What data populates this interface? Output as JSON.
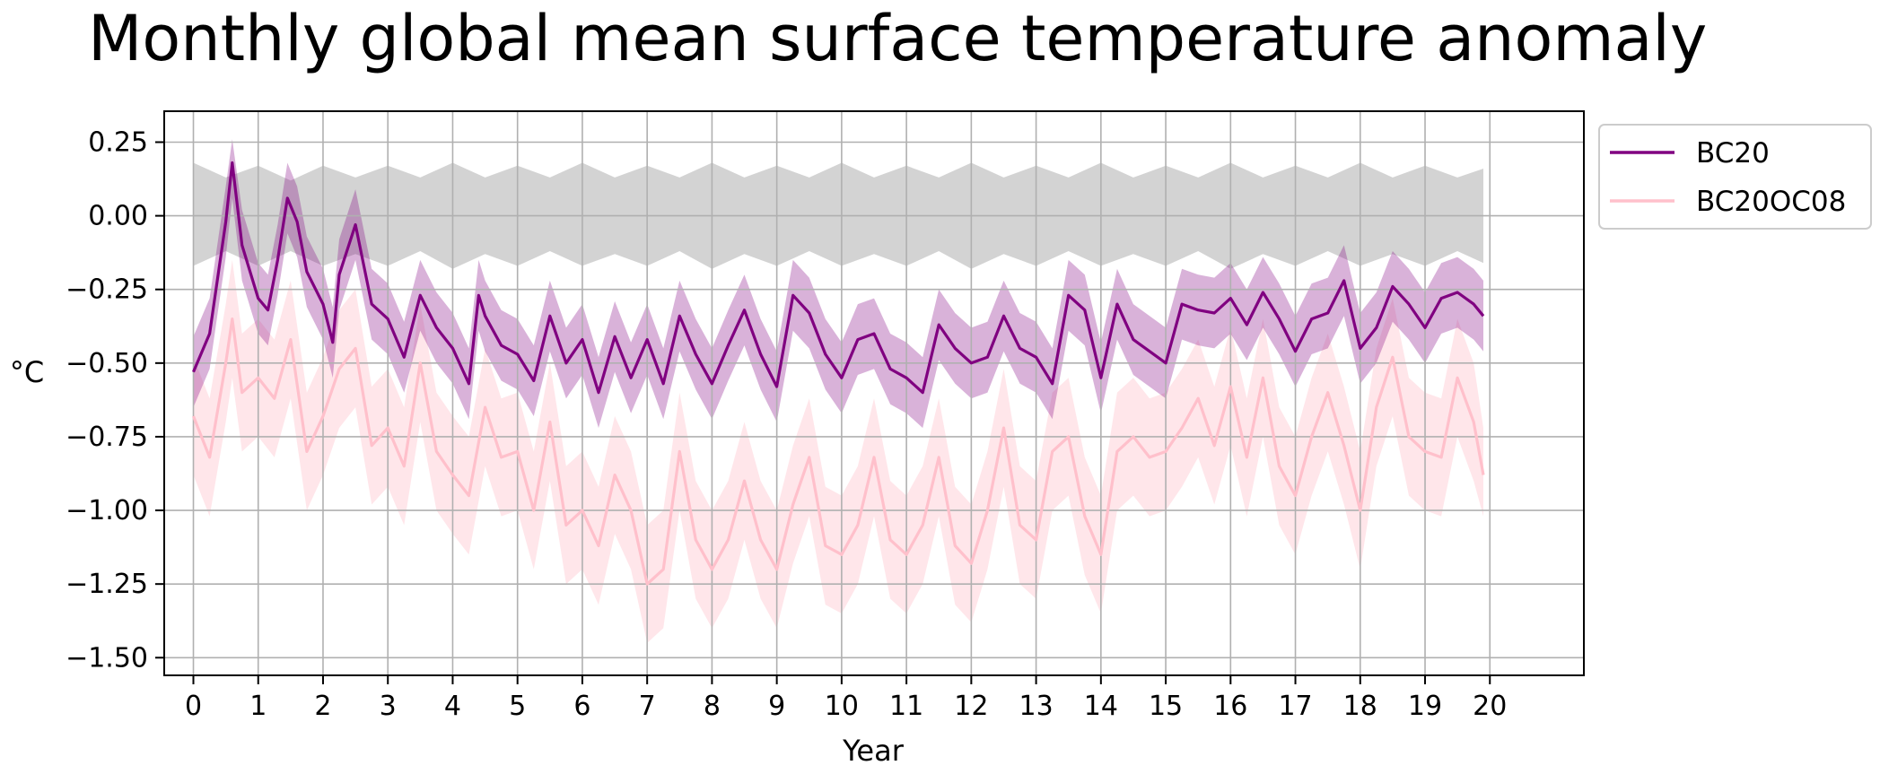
{
  "title": "Monthly global mean surface temperature anomaly",
  "chart_data": {
    "type": "line",
    "title": "Monthly global mean surface temperature anomaly",
    "xlabel": "Year",
    "ylabel": "°C",
    "xlim": [
      -0.45,
      21.45
    ],
    "ylim": [
      -1.56,
      0.355
    ],
    "xticks": [
      0,
      1,
      2,
      3,
      4,
      5,
      6,
      7,
      8,
      9,
      10,
      11,
      12,
      13,
      14,
      15,
      16,
      17,
      18,
      19,
      20
    ],
    "xtick_labels": [
      "0",
      "1",
      "2",
      "3",
      "4",
      "5",
      "6",
      "7",
      "8",
      "9",
      "10",
      "11",
      "12",
      "13",
      "14",
      "15",
      "16",
      "17",
      "18",
      "19",
      "20"
    ],
    "yticks": [
      0.25,
      0.0,
      -0.25,
      -0.5,
      -0.75,
      -1.0,
      -1.25,
      -1.5
    ],
    "ytick_labels": [
      "0.25",
      "0.00",
      "−0.25",
      "−0.50",
      "−0.75",
      "−1.00",
      "−1.25",
      "−1.50"
    ],
    "grid": true,
    "legend_position": "outside-upper-right",
    "reference_band": {
      "color": "#d3d3d3",
      "x": [
        0,
        0.5,
        1,
        1.5,
        2,
        2.5,
        3,
        3.5,
        4,
        4.5,
        5,
        5.5,
        6,
        6.5,
        7,
        7.5,
        8,
        8.5,
        9,
        9.5,
        10,
        10.5,
        11,
        11.5,
        12,
        12.5,
        13,
        13.5,
        14,
        14.5,
        15,
        15.5,
        16,
        16.5,
        17,
        17.5,
        18,
        18.5,
        19,
        19.5,
        19.9
      ],
      "upper": [
        0.18,
        0.13,
        0.17,
        0.12,
        0.17,
        0.13,
        0.17,
        0.13,
        0.18,
        0.13,
        0.17,
        0.13,
        0.18,
        0.13,
        0.17,
        0.13,
        0.18,
        0.13,
        0.17,
        0.13,
        0.18,
        0.13,
        0.17,
        0.13,
        0.18,
        0.13,
        0.17,
        0.13,
        0.18,
        0.13,
        0.17,
        0.13,
        0.18,
        0.13,
        0.17,
        0.13,
        0.18,
        0.13,
        0.17,
        0.13,
        0.16
      ],
      "lower": [
        -0.17,
        -0.12,
        -0.17,
        -0.12,
        -0.17,
        -0.13,
        -0.17,
        -0.12,
        -0.18,
        -0.13,
        -0.17,
        -0.12,
        -0.17,
        -0.13,
        -0.17,
        -0.12,
        -0.18,
        -0.13,
        -0.17,
        -0.12,
        -0.17,
        -0.13,
        -0.17,
        -0.12,
        -0.18,
        -0.13,
        -0.17,
        -0.12,
        -0.17,
        -0.13,
        -0.17,
        -0.12,
        -0.18,
        -0.13,
        -0.17,
        -0.12,
        -0.17,
        -0.13,
        -0.17,
        -0.12,
        -0.16
      ]
    },
    "series": [
      {
        "name": "BC20",
        "color": "#800080",
        "band_color": "#800080",
        "band_opacity": 0.3,
        "x": [
          0,
          0.25,
          0.5,
          0.6,
          0.75,
          1,
          1.15,
          1.3,
          1.45,
          1.6,
          1.75,
          2,
          2.15,
          2.25,
          2.5,
          2.75,
          3,
          3.25,
          3.5,
          3.75,
          4,
          4.25,
          4.4,
          4.5,
          4.75,
          5,
          5.25,
          5.5,
          5.75,
          6,
          6.25,
          6.5,
          6.75,
          7,
          7.25,
          7.5,
          7.75,
          8,
          8.25,
          8.5,
          8.75,
          9,
          9.25,
          9.5,
          9.75,
          10,
          10.25,
          10.5,
          10.75,
          11,
          11.25,
          11.5,
          11.75,
          12,
          12.25,
          12.5,
          12.75,
          13,
          13.25,
          13.5,
          13.75,
          14,
          14.25,
          14.5,
          14.75,
          15,
          15.25,
          15.5,
          15.75,
          16,
          16.25,
          16.5,
          16.75,
          17,
          17.25,
          17.5,
          17.75,
          18,
          18.25,
          18.5,
          18.75,
          19,
          19.25,
          19.5,
          19.75,
          19.9
        ],
        "y": [
          -0.53,
          -0.4,
          -0.02,
          0.18,
          -0.1,
          -0.28,
          -0.32,
          -0.15,
          0.06,
          -0.02,
          -0.19,
          -0.3,
          -0.43,
          -0.2,
          -0.03,
          -0.3,
          -0.35,
          -0.48,
          -0.27,
          -0.38,
          -0.45,
          -0.57,
          -0.27,
          -0.34,
          -0.44,
          -0.47,
          -0.56,
          -0.34,
          -0.5,
          -0.42,
          -0.6,
          -0.41,
          -0.55,
          -0.42,
          -0.57,
          -0.34,
          -0.47,
          -0.57,
          -0.44,
          -0.32,
          -0.47,
          -0.58,
          -0.27,
          -0.33,
          -0.47,
          -0.55,
          -0.42,
          -0.4,
          -0.52,
          -0.55,
          -0.6,
          -0.37,
          -0.45,
          -0.5,
          -0.48,
          -0.34,
          -0.45,
          -0.48,
          -0.57,
          -0.27,
          -0.32,
          -0.55,
          -0.3,
          -0.42,
          -0.46,
          -0.5,
          -0.3,
          -0.32,
          -0.33,
          -0.28,
          -0.37,
          -0.26,
          -0.35,
          -0.46,
          -0.35,
          -0.33,
          -0.22,
          -0.45,
          -0.38,
          -0.24,
          -0.3,
          -0.38,
          -0.28,
          -0.26,
          -0.3,
          -0.34
        ],
        "lower": [
          -0.65,
          -0.52,
          -0.14,
          0.06,
          -0.22,
          -0.4,
          -0.44,
          -0.27,
          -0.06,
          -0.14,
          -0.31,
          -0.42,
          -0.55,
          -0.32,
          -0.15,
          -0.42,
          -0.47,
          -0.6,
          -0.39,
          -0.5,
          -0.57,
          -0.69,
          -0.39,
          -0.46,
          -0.56,
          -0.59,
          -0.68,
          -0.46,
          -0.62,
          -0.54,
          -0.72,
          -0.53,
          -0.67,
          -0.54,
          -0.69,
          -0.46,
          -0.59,
          -0.69,
          -0.56,
          -0.44,
          -0.59,
          -0.7,
          -0.39,
          -0.45,
          -0.59,
          -0.67,
          -0.54,
          -0.52,
          -0.64,
          -0.67,
          -0.72,
          -0.49,
          -0.57,
          -0.62,
          -0.6,
          -0.46,
          -0.57,
          -0.6,
          -0.69,
          -0.39,
          -0.44,
          -0.67,
          -0.42,
          -0.54,
          -0.58,
          -0.62,
          -0.42,
          -0.44,
          -0.45,
          -0.4,
          -0.49,
          -0.38,
          -0.47,
          -0.58,
          -0.47,
          -0.45,
          -0.34,
          -0.57,
          -0.5,
          -0.36,
          -0.42,
          -0.5,
          -0.4,
          -0.38,
          -0.42,
          -0.46
        ],
        "upper": [
          -0.41,
          -0.28,
          0.1,
          0.26,
          0.02,
          -0.16,
          -0.2,
          -0.03,
          0.18,
          0.1,
          -0.07,
          -0.18,
          -0.31,
          -0.08,
          0.09,
          -0.18,
          -0.23,
          -0.36,
          -0.15,
          -0.26,
          -0.33,
          -0.45,
          -0.15,
          -0.22,
          -0.32,
          -0.35,
          -0.44,
          -0.22,
          -0.38,
          -0.3,
          -0.48,
          -0.29,
          -0.43,
          -0.3,
          -0.45,
          -0.22,
          -0.35,
          -0.45,
          -0.32,
          -0.2,
          -0.35,
          -0.46,
          -0.15,
          -0.21,
          -0.35,
          -0.43,
          -0.3,
          -0.28,
          -0.4,
          -0.43,
          -0.48,
          -0.25,
          -0.33,
          -0.38,
          -0.36,
          -0.22,
          -0.33,
          -0.36,
          -0.45,
          -0.15,
          -0.2,
          -0.43,
          -0.18,
          -0.3,
          -0.34,
          -0.38,
          -0.18,
          -0.2,
          -0.21,
          -0.16,
          -0.25,
          -0.14,
          -0.23,
          -0.34,
          -0.23,
          -0.21,
          -0.1,
          -0.33,
          -0.26,
          -0.12,
          -0.18,
          -0.26,
          -0.16,
          -0.14,
          -0.18,
          -0.22
        ]
      },
      {
        "name": "BC20OC08",
        "color": "#ffc0cb",
        "band_color": "#ffc0cb",
        "band_opacity": 0.4,
        "x": [
          0,
          0.25,
          0.5,
          0.6,
          0.75,
          1,
          1.25,
          1.5,
          1.75,
          2,
          2.25,
          2.5,
          2.75,
          3,
          3.25,
          3.5,
          3.75,
          4,
          4.25,
          4.5,
          4.75,
          5,
          5.25,
          5.5,
          5.75,
          6,
          6.25,
          6.5,
          6.75,
          7,
          7.25,
          7.5,
          7.75,
          8,
          8.25,
          8.5,
          8.75,
          9,
          9.25,
          9.5,
          9.75,
          10,
          10.25,
          10.5,
          10.75,
          11,
          11.25,
          11.5,
          11.75,
          12,
          12.25,
          12.5,
          12.75,
          13,
          13.25,
          13.5,
          13.75,
          14,
          14.25,
          14.5,
          14.75,
          15,
          15.25,
          15.5,
          15.75,
          16,
          16.25,
          16.5,
          16.75,
          17,
          17.25,
          17.5,
          17.75,
          18,
          18.25,
          18.5,
          18.75,
          19,
          19.25,
          19.5,
          19.75,
          19.9
        ],
        "y": [
          -0.68,
          -0.82,
          -0.5,
          -0.35,
          -0.6,
          -0.55,
          -0.62,
          -0.42,
          -0.8,
          -0.68,
          -0.52,
          -0.45,
          -0.78,
          -0.72,
          -0.85,
          -0.5,
          -0.8,
          -0.88,
          -0.95,
          -0.65,
          -0.82,
          -0.8,
          -1.0,
          -0.7,
          -1.05,
          -1.0,
          -1.12,
          -0.88,
          -1.0,
          -1.25,
          -1.2,
          -0.8,
          -1.1,
          -1.2,
          -1.1,
          -0.9,
          -1.1,
          -1.2,
          -0.98,
          -0.82,
          -1.12,
          -1.15,
          -1.05,
          -0.82,
          -1.1,
          -1.15,
          -1.05,
          -0.82,
          -1.12,
          -1.18,
          -1.0,
          -0.72,
          -1.05,
          -1.1,
          -0.8,
          -0.75,
          -1.02,
          -1.15,
          -0.8,
          -0.75,
          -0.82,
          -0.8,
          -0.72,
          -0.62,
          -0.78,
          -0.58,
          -0.82,
          -0.55,
          -0.85,
          -0.95,
          -0.75,
          -0.6,
          -0.78,
          -1.0,
          -0.65,
          -0.48,
          -0.75,
          -0.8,
          -0.82,
          -0.55,
          -0.7,
          -0.88
        ],
        "lower": [
          -0.88,
          -1.02,
          -0.7,
          -0.55,
          -0.8,
          -0.75,
          -0.82,
          -0.62,
          -1.0,
          -0.88,
          -0.72,
          -0.65,
          -0.98,
          -0.92,
          -1.05,
          -0.7,
          -1.0,
          -1.08,
          -1.15,
          -0.85,
          -1.02,
          -1.0,
          -1.2,
          -0.9,
          -1.25,
          -1.2,
          -1.32,
          -1.08,
          -1.2,
          -1.45,
          -1.4,
          -1.0,
          -1.3,
          -1.4,
          -1.3,
          -1.1,
          -1.3,
          -1.4,
          -1.18,
          -1.02,
          -1.32,
          -1.35,
          -1.25,
          -1.02,
          -1.3,
          -1.35,
          -1.25,
          -1.02,
          -1.32,
          -1.38,
          -1.2,
          -0.92,
          -1.25,
          -1.3,
          -1.0,
          -0.95,
          -1.22,
          -1.35,
          -1.0,
          -0.95,
          -1.02,
          -1.0,
          -0.92,
          -0.82,
          -0.98,
          -0.78,
          -1.02,
          -0.75,
          -1.05,
          -1.15,
          -0.95,
          -0.8,
          -0.98,
          -1.2,
          -0.85,
          -0.68,
          -0.95,
          -1.0,
          -1.02,
          -0.75,
          -0.9,
          -1.02
        ],
        "upper": [
          -0.48,
          -0.62,
          -0.3,
          -0.15,
          -0.4,
          -0.35,
          -0.42,
          -0.22,
          -0.6,
          -0.48,
          -0.32,
          -0.25,
          -0.58,
          -0.52,
          -0.65,
          -0.3,
          -0.6,
          -0.68,
          -0.75,
          -0.45,
          -0.62,
          -0.6,
          -0.8,
          -0.5,
          -0.85,
          -0.8,
          -0.92,
          -0.68,
          -0.8,
          -1.05,
          -1.0,
          -0.6,
          -0.9,
          -1.0,
          -0.9,
          -0.7,
          -0.9,
          -1.0,
          -0.78,
          -0.62,
          -0.92,
          -0.95,
          -0.85,
          -0.62,
          -0.9,
          -0.95,
          -0.85,
          -0.62,
          -0.92,
          -0.98,
          -0.8,
          -0.52,
          -0.85,
          -0.9,
          -0.6,
          -0.55,
          -0.82,
          -0.95,
          -0.6,
          -0.55,
          -0.62,
          -0.6,
          -0.52,
          -0.42,
          -0.58,
          -0.38,
          -0.62,
          -0.35,
          -0.65,
          -0.75,
          -0.55,
          -0.4,
          -0.58,
          -0.8,
          -0.45,
          -0.28,
          -0.55,
          -0.6,
          -0.62,
          -0.35,
          -0.5,
          -0.72
        ]
      }
    ]
  }
}
